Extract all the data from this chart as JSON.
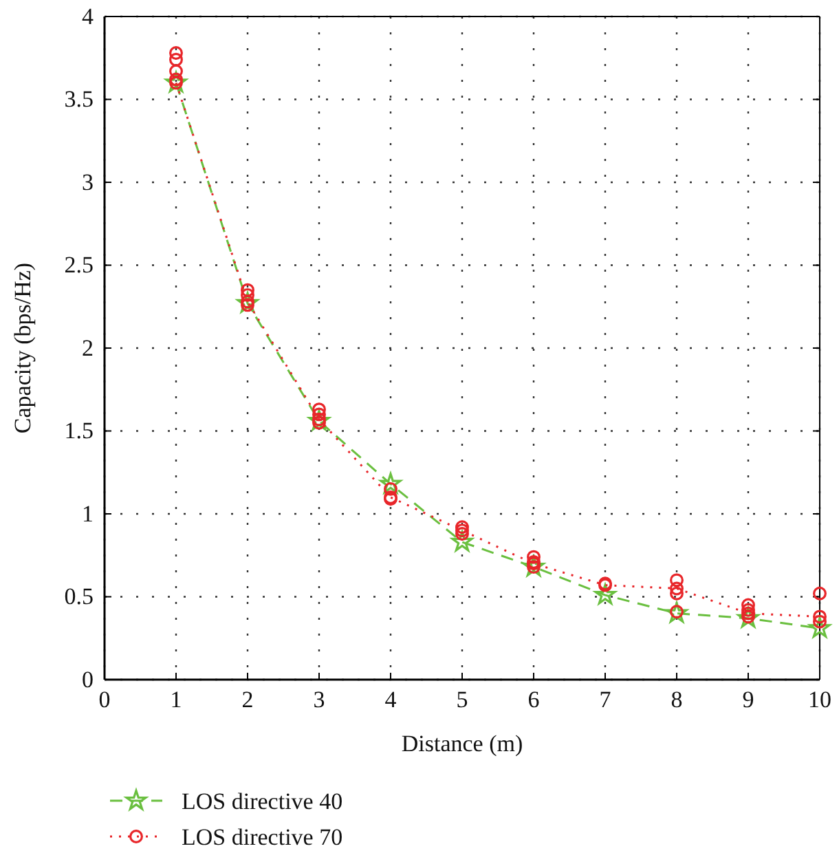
{
  "chart_data": {
    "type": "line",
    "xlabel": "Distance (m)",
    "ylabel": "Capacity (bps/Hz)",
    "x": [
      1,
      2,
      3,
      4,
      5,
      6,
      7,
      8,
      9,
      10
    ],
    "xlim": [
      0,
      10
    ],
    "xticks": [
      0,
      1,
      2,
      3,
      4,
      5,
      6,
      7,
      8,
      9,
      10
    ],
    "ylim": [
      0,
      4
    ],
    "yticks": [
      0,
      0.5,
      1,
      1.5,
      2,
      2.5,
      3,
      3.5,
      4
    ],
    "grid": true,
    "legend": "bottom",
    "series": [
      {
        "name": "LOS directive 40",
        "color": "#6abf3f",
        "marker": "star",
        "line_style": "dashed",
        "values": [
          3.6,
          2.27,
          1.56,
          1.18,
          0.83,
          0.68,
          0.51,
          0.4,
          0.37,
          0.31
        ]
      },
      {
        "name": "LOS directive 70",
        "color": "#e8262a",
        "marker": "circle",
        "line_style": "dotted",
        "values": [
          3.6,
          2.28,
          1.57,
          1.1,
          0.9,
          0.7,
          0.57,
          0.55,
          0.4,
          0.38
        ]
      },
      {
        "type": "scatter",
        "color": "#e8262a",
        "marker": "circle",
        "x": [
          1,
          1,
          1,
          1,
          2,
          2,
          2,
          3,
          3,
          3,
          4,
          4,
          5,
          5,
          6,
          6,
          6,
          7,
          8,
          8,
          8,
          9,
          9,
          9,
          10,
          10
        ],
        "values": [
          3.78,
          3.74,
          3.67,
          3.62,
          2.35,
          2.32,
          2.26,
          1.63,
          1.6,
          1.55,
          1.15,
          1.09,
          0.92,
          0.88,
          0.74,
          0.71,
          0.68,
          0.58,
          0.6,
          0.52,
          0.41,
          0.45,
          0.42,
          0.38,
          0.52,
          0.35
        ]
      }
    ]
  }
}
